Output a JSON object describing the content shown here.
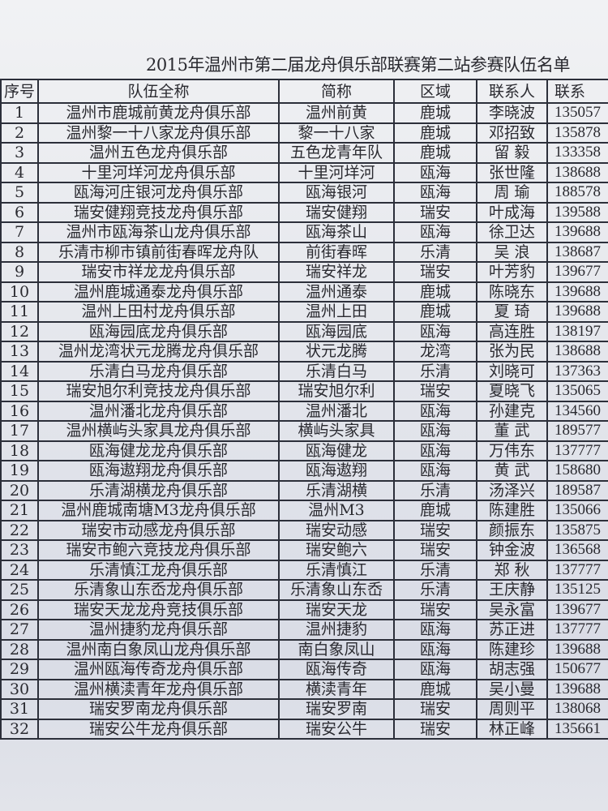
{
  "title": "2015年温州市第二届龙舟俱乐部联赛第二站参赛队伍名单",
  "headers": [
    "序号",
    "队伍全称",
    "简称",
    "区域",
    "联系人",
    "联系"
  ],
  "rows": [
    [
      "1",
      "温州市鹿城前黄龙舟俱乐部",
      "温州前黄",
      "鹿城",
      "李晓波",
      "135057"
    ],
    [
      "2",
      "温州黎一十八家龙舟俱乐部",
      "黎一十八家",
      "鹿城",
      "邓招致",
      "135878"
    ],
    [
      "3",
      "温州五色龙舟俱乐部",
      "五色龙青年队",
      "鹿城",
      "留 毅",
      "133358"
    ],
    [
      "4",
      "十里河垟河龙舟俱乐部",
      "十里河垟河",
      "瓯海",
      "张世隆",
      "138688"
    ],
    [
      "5",
      "瓯海河庄银河龙舟俱乐部",
      "瓯海银河",
      "瓯海",
      "周 瑜",
      "188578"
    ],
    [
      "6",
      "瑞安健翔竞技龙舟俱乐部",
      "瑞安健翔",
      "瑞安",
      "叶成海",
      "139588"
    ],
    [
      "7",
      "温州市瓯海茶山龙舟俱乐部",
      "瓯海茶山",
      "瓯海",
      "徐卫达",
      "139688"
    ],
    [
      "8",
      "乐清市柳市镇前街春晖龙舟队",
      "前街春晖",
      "乐清",
      "吴 浪",
      "138687"
    ],
    [
      "9",
      "瑞安市祥龙龙舟俱乐部",
      "瑞安祥龙",
      "瑞安",
      "叶芳豹",
      "139677"
    ],
    [
      "10",
      "温州鹿城通泰龙舟俱乐部",
      "温州通泰",
      "鹿城",
      "陈晓东",
      "139688"
    ],
    [
      "11",
      "温州上田村龙舟俱乐部",
      "温州上田",
      "鹿城",
      "夏 琦",
      "139688"
    ],
    [
      "12",
      "瓯海园底龙舟俱乐部",
      "瓯海园底",
      "瓯海",
      "高连胜",
      "138197"
    ],
    [
      "13",
      "温州龙湾状元龙腾龙舟俱乐部",
      "状元龙腾",
      "龙湾",
      "张为民",
      "138688"
    ],
    [
      "14",
      "乐清白马龙舟俱乐部",
      "乐清白马",
      "乐清",
      "刘晓可",
      "137363"
    ],
    [
      "15",
      "瑞安旭尔利竞技龙舟俱乐部",
      "瑞安旭尔利",
      "瑞安",
      "夏晓飞",
      "135065"
    ],
    [
      "16",
      "温州潘北龙舟俱乐部",
      "温州潘北",
      "瓯海",
      "孙建克",
      "134560"
    ],
    [
      "17",
      "温州横屿头家具龙舟俱乐部",
      "横屿头家具",
      "瓯海",
      "董 武",
      "189577"
    ],
    [
      "18",
      "瓯海健龙龙舟俱乐部",
      "瓯海健龙",
      "瓯海",
      "万伟东",
      "137777"
    ],
    [
      "19",
      "瓯海遨翔龙舟俱乐部",
      "瓯海遨翔",
      "瓯海",
      "黄 武",
      "158680"
    ],
    [
      "20",
      "乐清湖横龙舟俱乐部",
      "乐清湖横",
      "乐清",
      "汤泽兴",
      "189587"
    ],
    [
      "21",
      "温州鹿城南塘M3龙舟俱乐部",
      "温州M3",
      "鹿城",
      "陈建胜",
      "135066"
    ],
    [
      "22",
      "瑞安市动感龙舟俱乐部",
      "瑞安动感",
      "瑞安",
      "颜振东",
      "135875"
    ],
    [
      "23",
      "瑞安市鲍六竞技龙舟俱乐部",
      "瑞安鲍六",
      "瑞安",
      "钟金波",
      "136568"
    ],
    [
      "24",
      "乐清慎江龙舟俱乐部",
      "乐清慎江",
      "乐清",
      "郑 秋",
      "137777"
    ],
    [
      "25",
      "乐清象山东岙龙舟俱乐部",
      "乐清象山东岙",
      "乐清",
      "王庆静",
      "135125"
    ],
    [
      "26",
      "瑞安天龙龙舟竞技俱乐部",
      "瑞安天龙",
      "瑞安",
      "吴永富",
      "139677"
    ],
    [
      "27",
      "温州捷豹龙舟俱乐部",
      "温州捷豹",
      "瓯海",
      "苏正进",
      "137777"
    ],
    [
      "28",
      "温州南白象凤山龙舟俱乐部",
      "南白象凤山",
      "瓯海",
      "陈建珍",
      "139688"
    ],
    [
      "29",
      "温州瓯海传奇龙舟俱乐部",
      "瓯海传奇",
      "瓯海",
      "胡志强",
      "150677"
    ],
    [
      "30",
      "温州横渎青年龙舟俱乐部",
      "横渎青年",
      "鹿城",
      "吴小曼",
      "139688"
    ],
    [
      "31",
      "瑞安罗南龙舟俱乐部",
      "瑞安罗南",
      "瑞安",
      "周则平",
      "138068"
    ],
    [
      "32",
      "瑞安公牛龙舟俱乐部",
      "瑞安公牛",
      "瑞安",
      "林正峰",
      "135661"
    ]
  ]
}
